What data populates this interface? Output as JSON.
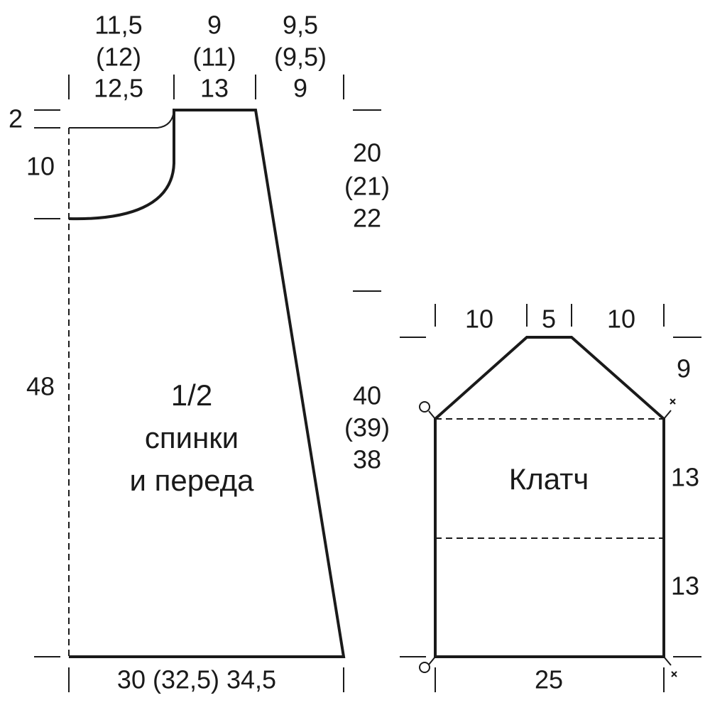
{
  "pieces": [
    {
      "label": [
        "1/2",
        "спинки",
        "и переда"
      ],
      "top_widths": [
        [
          "11,5",
          "(12)",
          "12,5"
        ],
        [
          "9",
          "(11)",
          "13"
        ],
        [
          "9,5",
          "(9,5)",
          "9"
        ]
      ],
      "left_heights": [
        "2",
        "10",
        "48"
      ],
      "right_heights": [
        [
          "20",
          "(21)",
          "22"
        ],
        [
          "40",
          "(39)",
          "38"
        ]
      ],
      "bottom_width": "30 (32,5) 34,5"
    },
    {
      "label": "Клатч",
      "top_widths": [
        "10",
        "5",
        "10"
      ],
      "right_heights": [
        "9",
        "13",
        "13"
      ],
      "bottom_width": "25"
    }
  ]
}
